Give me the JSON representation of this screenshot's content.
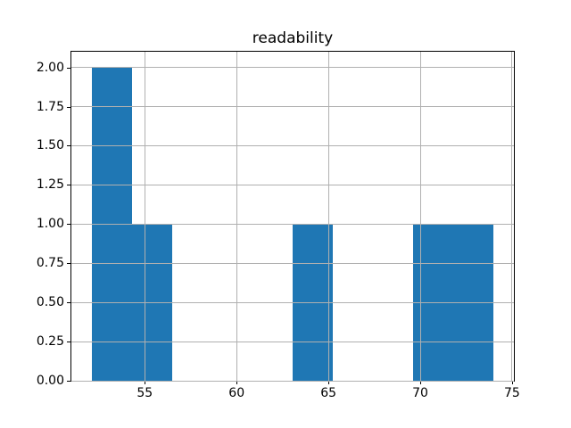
{
  "chart_data": {
    "type": "bar",
    "subtype": "histogram",
    "title": "readability",
    "xlabel": "",
    "ylabel": "",
    "bin_edges": [
      52.1,
      54.29,
      56.48,
      58.67,
      60.86,
      63.05,
      65.24,
      67.43,
      69.62,
      71.81,
      74.0
    ],
    "counts": [
      2,
      1,
      0,
      0,
      0,
      1,
      0,
      0,
      1,
      1
    ],
    "total_observations": 6,
    "xlim": [
      51.0,
      75.1
    ],
    "ylim": [
      0,
      2.1
    ],
    "x_ticks": [
      55,
      60,
      65,
      70,
      75
    ],
    "x_tick_labels": [
      "55",
      "60",
      "65",
      "70",
      "75"
    ],
    "y_ticks": [
      0,
      0.25,
      0.5,
      0.75,
      1.0,
      1.25,
      1.5,
      1.75,
      2.0
    ],
    "y_tick_labels": [
      "0.00",
      "0.25",
      "0.50",
      "0.75",
      "1.00",
      "1.25",
      "1.50",
      "1.75",
      "2.00"
    ],
    "grid": true,
    "grid_on_top": true,
    "legend_position": "none",
    "colors": {
      "bar": "#1f77b4",
      "grid": "#b0b0b0",
      "spine": "#000000",
      "text": "#000000",
      "background": "#ffffff"
    }
  }
}
